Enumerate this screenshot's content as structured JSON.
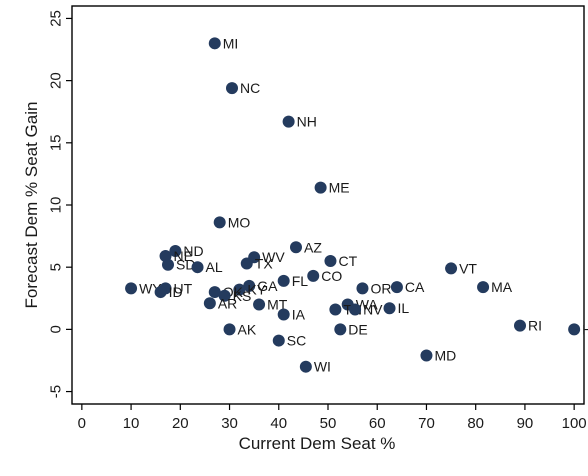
{
  "chart_data": {
    "type": "scatter",
    "xlabel": "Current Dem Seat %",
    "ylabel": "Forecast Dem % Seat Gain",
    "xlim": [
      -2,
      102
    ],
    "ylim": [
      -6,
      26
    ],
    "xticks": [
      0,
      10,
      20,
      30,
      40,
      50,
      60,
      70,
      80,
      90,
      100
    ],
    "yticks": [
      -5,
      0,
      5,
      10,
      15,
      20,
      25
    ],
    "grid": false,
    "legend": "none",
    "marker_color": "#243b5e",
    "points": [
      {
        "label": "MI",
        "x": 27,
        "y": 23
      },
      {
        "label": "NC",
        "x": 30.5,
        "y": 19.4
      },
      {
        "label": "NH",
        "x": 42,
        "y": 16.7
      },
      {
        "label": "ME",
        "x": 48.5,
        "y": 11.4
      },
      {
        "label": "MO",
        "x": 28,
        "y": 8.6
      },
      {
        "label": "AZ",
        "x": 43.5,
        "y": 6.6
      },
      {
        "label": "ND",
        "x": 19,
        "y": 6.3
      },
      {
        "label": "NE",
        "x": 17,
        "y": 5.9
      },
      {
        "label": "WV",
        "x": 35,
        "y": 5.8
      },
      {
        "label": "CT",
        "x": 50.5,
        "y": 5.5
      },
      {
        "label": "TX",
        "x": 33.5,
        "y": 5.3
      },
      {
        "label": "SD",
        "x": 17.5,
        "y": 5.2
      },
      {
        "label": "AL",
        "x": 23.5,
        "y": 5.0
      },
      {
        "label": "VT",
        "x": 75,
        "y": 4.9
      },
      {
        "label": "CO",
        "x": 47,
        "y": 4.3
      },
      {
        "label": "FL",
        "x": 41,
        "y": 3.9
      },
      {
        "label": "GA",
        "x": 34,
        "y": 3.5
      },
      {
        "label": "MA",
        "x": 81.5,
        "y": 3.4
      },
      {
        "label": "CA",
        "x": 64,
        "y": 3.4
      },
      {
        "label": "WY",
        "x": 10,
        "y": 3.3
      },
      {
        "label": "UT",
        "x": 17,
        "y": 3.3
      },
      {
        "label": "OR",
        "x": 57,
        "y": 3.3
      },
      {
        "label": "KY",
        "x": 32,
        "y": 3.2
      },
      {
        "label": "OK",
        "x": 27,
        "y": 3.0
      },
      {
        "label": "ID",
        "x": 16,
        "y": 3.0
      },
      {
        "label": "KS",
        "x": 29,
        "y": 2.7
      },
      {
        "label": "WA",
        "x": 54,
        "y": 2.0
      },
      {
        "label": "MT",
        "x": 36,
        "y": 2.0
      },
      {
        "label": "AR",
        "x": 26,
        "y": 2.1
      },
      {
        "label": "IL",
        "x": 62.5,
        "y": 1.7
      },
      {
        "label": "TN",
        "x": 51.5,
        "y": 1.6
      },
      {
        "label": "NV",
        "x": 55.5,
        "y": 1.6
      },
      {
        "label": "IA",
        "x": 41,
        "y": 1.2
      },
      {
        "label": "RI",
        "x": 89,
        "y": 0.3
      },
      {
        "label": "AK",
        "x": 30,
        "y": 0.0
      },
      {
        "label": "DE",
        "x": 52.5,
        "y": 0.0
      },
      {
        "label": "HI",
        "x": 100,
        "y": 0.0
      },
      {
        "label": "SC",
        "x": 40,
        "y": -0.9
      },
      {
        "label": "MD",
        "x": 70,
        "y": -2.1
      },
      {
        "label": "WI",
        "x": 45.5,
        "y": -3.0
      }
    ]
  }
}
